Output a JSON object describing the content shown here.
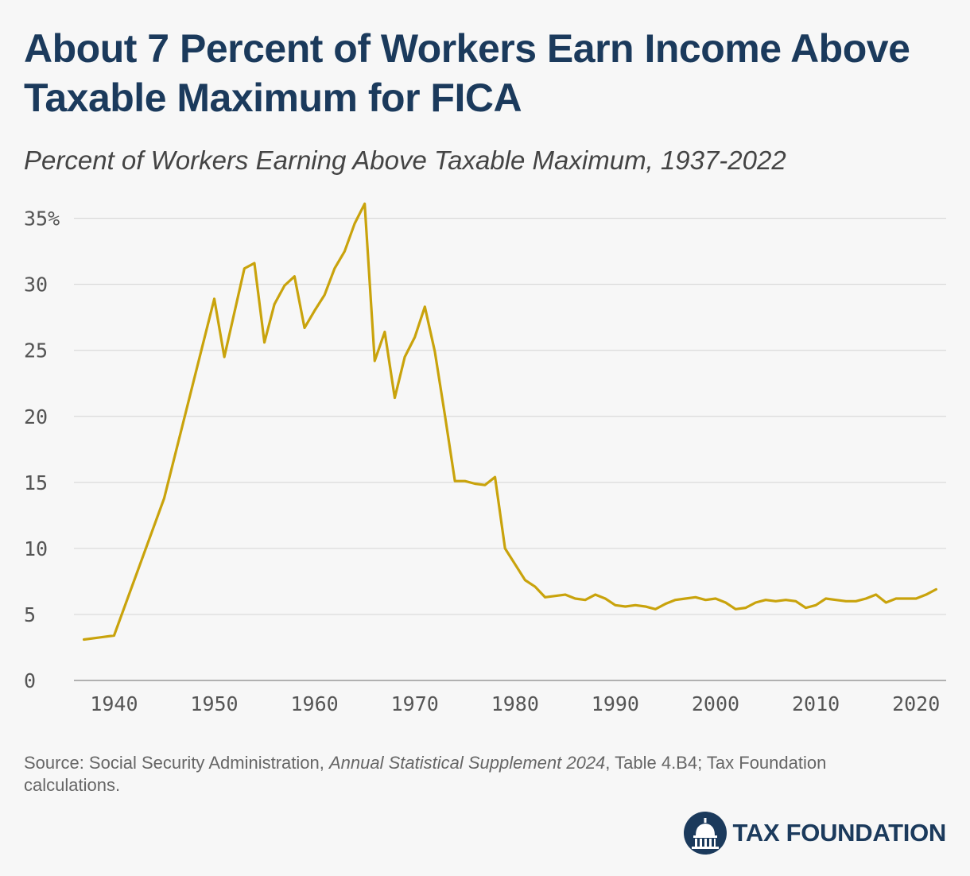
{
  "header": {
    "title": "About 7 Percent of Workers Earn Income Above Taxable Maximum for FICA",
    "subtitle": "Percent of Workers Earning Above Taxable Maximum, 1937-2022"
  },
  "footer": {
    "source_prefix": "Source: Social Security Administration, ",
    "source_publication": "Annual Statistical Supplement 2024",
    "source_suffix": ", Table 4.B4; Tax Foundation calculations.",
    "brand_name": "TAX FOUNDATION"
  },
  "colors": {
    "line": "#c9a30c",
    "title": "#1b3a5c",
    "grid": "#d4d4d4",
    "background": "#f7f7f7"
  },
  "chart_data": {
    "type": "line",
    "title": "About 7 Percent of Workers Earn Income Above Taxable Maximum for FICA",
    "subtitle": "Percent of Workers Earning Above Taxable Maximum, 1937-2022",
    "xlabel": "",
    "ylabel": "",
    "xlim": [
      1936,
      2023
    ],
    "ylim": [
      0,
      36
    ],
    "grid": "horizontal",
    "legend": "none",
    "y_ticks": [
      0,
      5,
      10,
      15,
      20,
      25,
      30,
      35
    ],
    "y_tick_labels": [
      "0",
      "5",
      "10",
      "15",
      "20",
      "25",
      "30",
      "35%"
    ],
    "x_ticks": [
      1940,
      1950,
      1960,
      1970,
      1980,
      1990,
      2000,
      2010,
      2020
    ],
    "x_tick_labels": [
      "1940",
      "1950",
      "1960",
      "1970",
      "1980",
      "1990",
      "2000",
      "2010",
      "2020"
    ],
    "series": [
      {
        "color": "#c9a30c",
        "x": [
          1937,
          1940,
          1945,
          1950,
          1951,
          1953,
          1954,
          1955,
          1956,
          1957,
          1958,
          1959,
          1960,
          1961,
          1962,
          1963,
          1964,
          1965,
          1966,
          1967,
          1968,
          1969,
          1970,
          1971,
          1972,
          1973,
          1974,
          1975,
          1976,
          1977,
          1978,
          1979,
          1980,
          1981,
          1982,
          1983,
          1984,
          1985,
          1986,
          1987,
          1988,
          1989,
          1990,
          1991,
          1992,
          1993,
          1994,
          1995,
          1996,
          1997,
          1998,
          1999,
          2000,
          2001,
          2002,
          2003,
          2004,
          2005,
          2006,
          2007,
          2008,
          2009,
          2010,
          2011,
          2012,
          2013,
          2014,
          2015,
          2016,
          2017,
          2018,
          2019,
          2020,
          2021,
          2022
        ],
        "values": [
          3.1,
          3.4,
          13.8,
          28.9,
          24.5,
          31.2,
          31.6,
          25.6,
          28.5,
          29.9,
          30.6,
          26.7,
          28.0,
          29.2,
          31.2,
          32.5,
          34.6,
          36.1,
          24.2,
          26.4,
          21.4,
          24.5,
          26.0,
          28.3,
          24.9,
          20.1,
          15.1,
          15.1,
          14.9,
          14.8,
          15.4,
          10.0,
          8.8,
          7.6,
          7.1,
          6.3,
          6.4,
          6.5,
          6.2,
          6.1,
          6.5,
          6.2,
          5.7,
          5.6,
          5.7,
          5.6,
          5.4,
          5.8,
          6.1,
          6.2,
          6.3,
          6.1,
          6.2,
          5.9,
          5.4,
          5.5,
          5.9,
          6.1,
          6.0,
          6.1,
          6.0,
          5.5,
          5.7,
          6.2,
          6.1,
          6.0,
          6.0,
          6.2,
          6.5,
          5.9,
          6.2,
          6.2,
          6.2,
          6.5,
          6.9
        ]
      }
    ]
  }
}
